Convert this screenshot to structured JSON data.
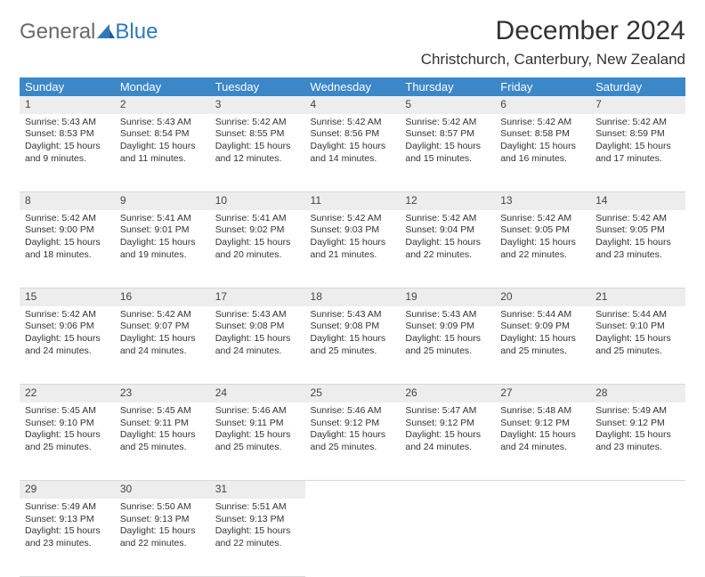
{
  "brand": {
    "part1": "General",
    "part2": "Blue"
  },
  "title": "December 2024",
  "location": "Christchurch, Canterbury, New Zealand",
  "colors": {
    "header_blue": "#3b87c8",
    "daynum_bg": "#ededed",
    "text": "#333333",
    "logo_gray": "#6a6a6a",
    "logo_blue": "#2f79b9"
  },
  "weekdays": [
    "Sunday",
    "Monday",
    "Tuesday",
    "Wednesday",
    "Thursday",
    "Friday",
    "Saturday"
  ],
  "days": {
    "1": {
      "sunrise": "Sunrise: 5:43 AM",
      "sunset": "Sunset: 8:53 PM",
      "daylight1": "Daylight: 15 hours",
      "daylight2": "and 9 minutes."
    },
    "2": {
      "sunrise": "Sunrise: 5:43 AM",
      "sunset": "Sunset: 8:54 PM",
      "daylight1": "Daylight: 15 hours",
      "daylight2": "and 11 minutes."
    },
    "3": {
      "sunrise": "Sunrise: 5:42 AM",
      "sunset": "Sunset: 8:55 PM",
      "daylight1": "Daylight: 15 hours",
      "daylight2": "and 12 minutes."
    },
    "4": {
      "sunrise": "Sunrise: 5:42 AM",
      "sunset": "Sunset: 8:56 PM",
      "daylight1": "Daylight: 15 hours",
      "daylight2": "and 14 minutes."
    },
    "5": {
      "sunrise": "Sunrise: 5:42 AM",
      "sunset": "Sunset: 8:57 PM",
      "daylight1": "Daylight: 15 hours",
      "daylight2": "and 15 minutes."
    },
    "6": {
      "sunrise": "Sunrise: 5:42 AM",
      "sunset": "Sunset: 8:58 PM",
      "daylight1": "Daylight: 15 hours",
      "daylight2": "and 16 minutes."
    },
    "7": {
      "sunrise": "Sunrise: 5:42 AM",
      "sunset": "Sunset: 8:59 PM",
      "daylight1": "Daylight: 15 hours",
      "daylight2": "and 17 minutes."
    },
    "8": {
      "sunrise": "Sunrise: 5:42 AM",
      "sunset": "Sunset: 9:00 PM",
      "daylight1": "Daylight: 15 hours",
      "daylight2": "and 18 minutes."
    },
    "9": {
      "sunrise": "Sunrise: 5:41 AM",
      "sunset": "Sunset: 9:01 PM",
      "daylight1": "Daylight: 15 hours",
      "daylight2": "and 19 minutes."
    },
    "10": {
      "sunrise": "Sunrise: 5:41 AM",
      "sunset": "Sunset: 9:02 PM",
      "daylight1": "Daylight: 15 hours",
      "daylight2": "and 20 minutes."
    },
    "11": {
      "sunrise": "Sunrise: 5:42 AM",
      "sunset": "Sunset: 9:03 PM",
      "daylight1": "Daylight: 15 hours",
      "daylight2": "and 21 minutes."
    },
    "12": {
      "sunrise": "Sunrise: 5:42 AM",
      "sunset": "Sunset: 9:04 PM",
      "daylight1": "Daylight: 15 hours",
      "daylight2": "and 22 minutes."
    },
    "13": {
      "sunrise": "Sunrise: 5:42 AM",
      "sunset": "Sunset: 9:05 PM",
      "daylight1": "Daylight: 15 hours",
      "daylight2": "and 22 minutes."
    },
    "14": {
      "sunrise": "Sunrise: 5:42 AM",
      "sunset": "Sunset: 9:05 PM",
      "daylight1": "Daylight: 15 hours",
      "daylight2": "and 23 minutes."
    },
    "15": {
      "sunrise": "Sunrise: 5:42 AM",
      "sunset": "Sunset: 9:06 PM",
      "daylight1": "Daylight: 15 hours",
      "daylight2": "and 24 minutes."
    },
    "16": {
      "sunrise": "Sunrise: 5:42 AM",
      "sunset": "Sunset: 9:07 PM",
      "daylight1": "Daylight: 15 hours",
      "daylight2": "and 24 minutes."
    },
    "17": {
      "sunrise": "Sunrise: 5:43 AM",
      "sunset": "Sunset: 9:08 PM",
      "daylight1": "Daylight: 15 hours",
      "daylight2": "and 24 minutes."
    },
    "18": {
      "sunrise": "Sunrise: 5:43 AM",
      "sunset": "Sunset: 9:08 PM",
      "daylight1": "Daylight: 15 hours",
      "daylight2": "and 25 minutes."
    },
    "19": {
      "sunrise": "Sunrise: 5:43 AM",
      "sunset": "Sunset: 9:09 PM",
      "daylight1": "Daylight: 15 hours",
      "daylight2": "and 25 minutes."
    },
    "20": {
      "sunrise": "Sunrise: 5:44 AM",
      "sunset": "Sunset: 9:09 PM",
      "daylight1": "Daylight: 15 hours",
      "daylight2": "and 25 minutes."
    },
    "21": {
      "sunrise": "Sunrise: 5:44 AM",
      "sunset": "Sunset: 9:10 PM",
      "daylight1": "Daylight: 15 hours",
      "daylight2": "and 25 minutes."
    },
    "22": {
      "sunrise": "Sunrise: 5:45 AM",
      "sunset": "Sunset: 9:10 PM",
      "daylight1": "Daylight: 15 hours",
      "daylight2": "and 25 minutes."
    },
    "23": {
      "sunrise": "Sunrise: 5:45 AM",
      "sunset": "Sunset: 9:11 PM",
      "daylight1": "Daylight: 15 hours",
      "daylight2": "and 25 minutes."
    },
    "24": {
      "sunrise": "Sunrise: 5:46 AM",
      "sunset": "Sunset: 9:11 PM",
      "daylight1": "Daylight: 15 hours",
      "daylight2": "and 25 minutes."
    },
    "25": {
      "sunrise": "Sunrise: 5:46 AM",
      "sunset": "Sunset: 9:12 PM",
      "daylight1": "Daylight: 15 hours",
      "daylight2": "and 25 minutes."
    },
    "26": {
      "sunrise": "Sunrise: 5:47 AM",
      "sunset": "Sunset: 9:12 PM",
      "daylight1": "Daylight: 15 hours",
      "daylight2": "and 24 minutes."
    },
    "27": {
      "sunrise": "Sunrise: 5:48 AM",
      "sunset": "Sunset: 9:12 PM",
      "daylight1": "Daylight: 15 hours",
      "daylight2": "and 24 minutes."
    },
    "28": {
      "sunrise": "Sunrise: 5:49 AM",
      "sunset": "Sunset: 9:12 PM",
      "daylight1": "Daylight: 15 hours",
      "daylight2": "and 23 minutes."
    },
    "29": {
      "sunrise": "Sunrise: 5:49 AM",
      "sunset": "Sunset: 9:13 PM",
      "daylight1": "Daylight: 15 hours",
      "daylight2": "and 23 minutes."
    },
    "30": {
      "sunrise": "Sunrise: 5:50 AM",
      "sunset": "Sunset: 9:13 PM",
      "daylight1": "Daylight: 15 hours",
      "daylight2": "and 22 minutes."
    },
    "31": {
      "sunrise": "Sunrise: 5:51 AM",
      "sunset": "Sunset: 9:13 PM",
      "daylight1": "Daylight: 15 hours",
      "daylight2": "and 22 minutes."
    }
  },
  "grid": [
    [
      1,
      2,
      3,
      4,
      5,
      6,
      7
    ],
    [
      8,
      9,
      10,
      11,
      12,
      13,
      14
    ],
    [
      15,
      16,
      17,
      18,
      19,
      20,
      21
    ],
    [
      22,
      23,
      24,
      25,
      26,
      27,
      28
    ],
    [
      29,
      30,
      31,
      null,
      null,
      null,
      null
    ]
  ]
}
